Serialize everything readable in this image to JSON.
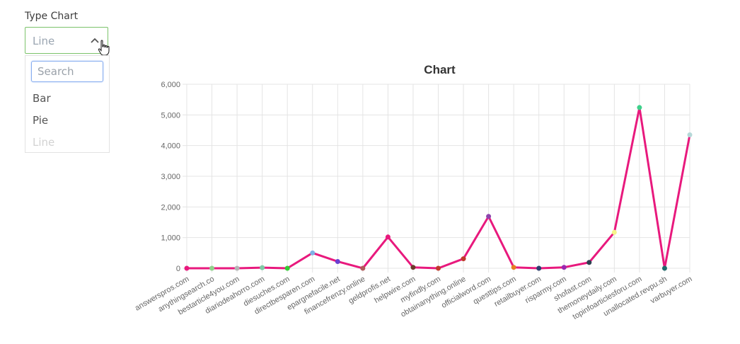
{
  "controls": {
    "type_label": "Type Chart",
    "selected": "Line",
    "search_placeholder": "Search",
    "options": [
      "Bar",
      "Pie",
      "Line"
    ]
  },
  "chart_data": {
    "type": "line",
    "title": "Chart",
    "xlabel": "",
    "ylabel": "",
    "ylim": [
      0,
      6000
    ],
    "yticks": [
      0,
      1000,
      2000,
      3000,
      4000,
      5000,
      6000
    ],
    "grid": true,
    "line_color": "#e8197d",
    "categories": [
      "answerspros.com",
      "anythingsearch.co",
      "bestarticle4you.com",
      "diariodeahorro.com",
      "diesuches.com",
      "directbesparen.com",
      "epargnefacile.net",
      "financefrenzy.online",
      "geldprofis.net",
      "helpwire.com",
      "myfindly.com",
      "obtainanything.online",
      "officialword.com",
      "questtips.com",
      "retailbuyer.com",
      "risparmy.com",
      "shofast.com",
      "themoneydaily.com",
      "topinfoarticlesforu.com",
      "unallocated.revpu.sh",
      "varbuyer.com"
    ],
    "values": [
      0,
      0,
      0,
      20,
      0,
      500,
      220,
      0,
      1020,
      30,
      0,
      310,
      1690,
      30,
      0,
      30,
      190,
      1170,
      5240,
      0,
      4350
    ],
    "point_colors": [
      "#e8197d",
      "#8fd18b",
      "#b5b5b5",
      "#7fc9a5",
      "#33cc33",
      "#7fb2e5",
      "#6a3fd1",
      "#b05a5a",
      "#e8197d",
      "#6b3a2a",
      "#c0392b",
      "#c0392b",
      "#8e44ad",
      "#e67e22",
      "#2c3e70",
      "#9b27b0",
      "#2c3e50",
      "#f5f58a",
      "#3ed18b",
      "#1f6b6b",
      "#b5d8d8"
    ]
  }
}
